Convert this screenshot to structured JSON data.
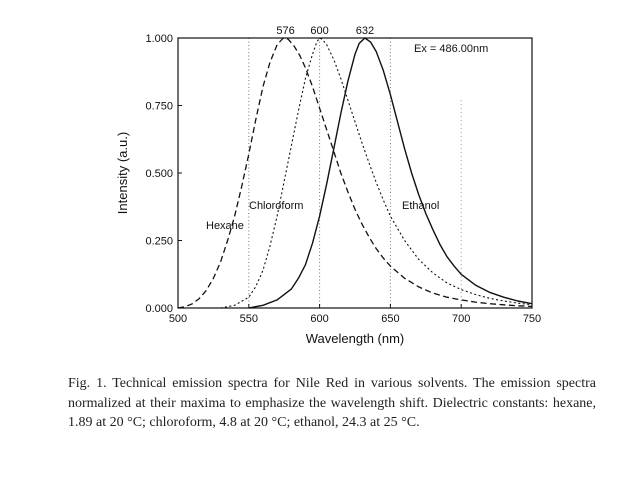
{
  "chart_data": {
    "type": "line",
    "title": "",
    "xlabel": "Wavelength (nm)",
    "ylabel": "Intensity (a.u.)",
    "xlim": [
      500,
      750
    ],
    "ylim": [
      0.0,
      1.0
    ],
    "x_ticks": [
      "500",
      "550",
      "600",
      "650",
      "700",
      "750"
    ],
    "y_ticks": [
      "0.000",
      "0.250",
      "0.500",
      "0.750",
      "1.000"
    ],
    "peak_labels": [
      "576",
      "600",
      "632"
    ],
    "peak_wavelengths": [
      576,
      600,
      632
    ],
    "gridlines_x": [
      550,
      600,
      650
    ],
    "excitation_label": "Ex = 486.00nm",
    "series": [
      {
        "name": "Hexane",
        "style": "dashed",
        "x": [
          500,
          505,
          510,
          515,
          520,
          525,
          530,
          535,
          540,
          545,
          550,
          555,
          560,
          565,
          570,
          574,
          576,
          578,
          582,
          586,
          590,
          595,
          600,
          605,
          610,
          615,
          620,
          625,
          630,
          635,
          640,
          645,
          650,
          660,
          670,
          680,
          690,
          700,
          710,
          720,
          730,
          740,
          750
        ],
        "y": [
          0.0,
          0.005,
          0.015,
          0.035,
          0.065,
          0.11,
          0.17,
          0.25,
          0.34,
          0.45,
          0.57,
          0.7,
          0.82,
          0.91,
          0.975,
          0.998,
          1.0,
          0.995,
          0.97,
          0.935,
          0.89,
          0.82,
          0.74,
          0.66,
          0.58,
          0.5,
          0.43,
          0.365,
          0.31,
          0.262,
          0.22,
          0.185,
          0.155,
          0.11,
          0.078,
          0.055,
          0.04,
          0.03,
          0.022,
          0.016,
          0.012,
          0.008,
          0.006
        ]
      },
      {
        "name": "Chloroform",
        "style": "dotted",
        "x": [
          530,
          540,
          550,
          555,
          560,
          565,
          570,
          575,
          580,
          585,
          590,
          595,
          598,
          600,
          602,
          605,
          610,
          615,
          620,
          625,
          630,
          635,
          640,
          645,
          650,
          660,
          670,
          680,
          690,
          700,
          710,
          720,
          730,
          740,
          750
        ],
        "y": [
          0.0,
          0.01,
          0.04,
          0.08,
          0.14,
          0.23,
          0.34,
          0.47,
          0.6,
          0.73,
          0.85,
          0.94,
          0.985,
          1.0,
          0.995,
          0.975,
          0.92,
          0.85,
          0.77,
          0.69,
          0.61,
          0.535,
          0.465,
          0.4,
          0.34,
          0.25,
          0.18,
          0.13,
          0.093,
          0.068,
          0.05,
          0.036,
          0.026,
          0.018,
          0.012
        ]
      },
      {
        "name": "Ethanol",
        "style": "solid",
        "x": [
          550,
          560,
          570,
          580,
          585,
          590,
          595,
          600,
          605,
          610,
          615,
          620,
          625,
          628,
          632,
          636,
          640,
          645,
          650,
          655,
          660,
          665,
          670,
          675,
          680,
          685,
          690,
          695,
          700,
          710,
          720,
          730,
          740,
          750
        ],
        "y": [
          0.0,
          0.01,
          0.03,
          0.07,
          0.11,
          0.16,
          0.24,
          0.34,
          0.46,
          0.59,
          0.72,
          0.84,
          0.94,
          0.98,
          1.0,
          0.985,
          0.95,
          0.88,
          0.79,
          0.69,
          0.59,
          0.5,
          0.42,
          0.35,
          0.29,
          0.235,
          0.19,
          0.155,
          0.125,
          0.085,
          0.058,
          0.04,
          0.026,
          0.016
        ]
      }
    ]
  },
  "caption": {
    "text": "Fig. 1. Technical emission spectra for Nile Red in various solvents. The emission spectra normalized at their maxima to emphasize the wavelength shift. Dielectric constants: hexane, 1.89 at 20 °C; chloroform, 4.8 at 20 °C; ethanol, 24.3 at 25 °C."
  }
}
